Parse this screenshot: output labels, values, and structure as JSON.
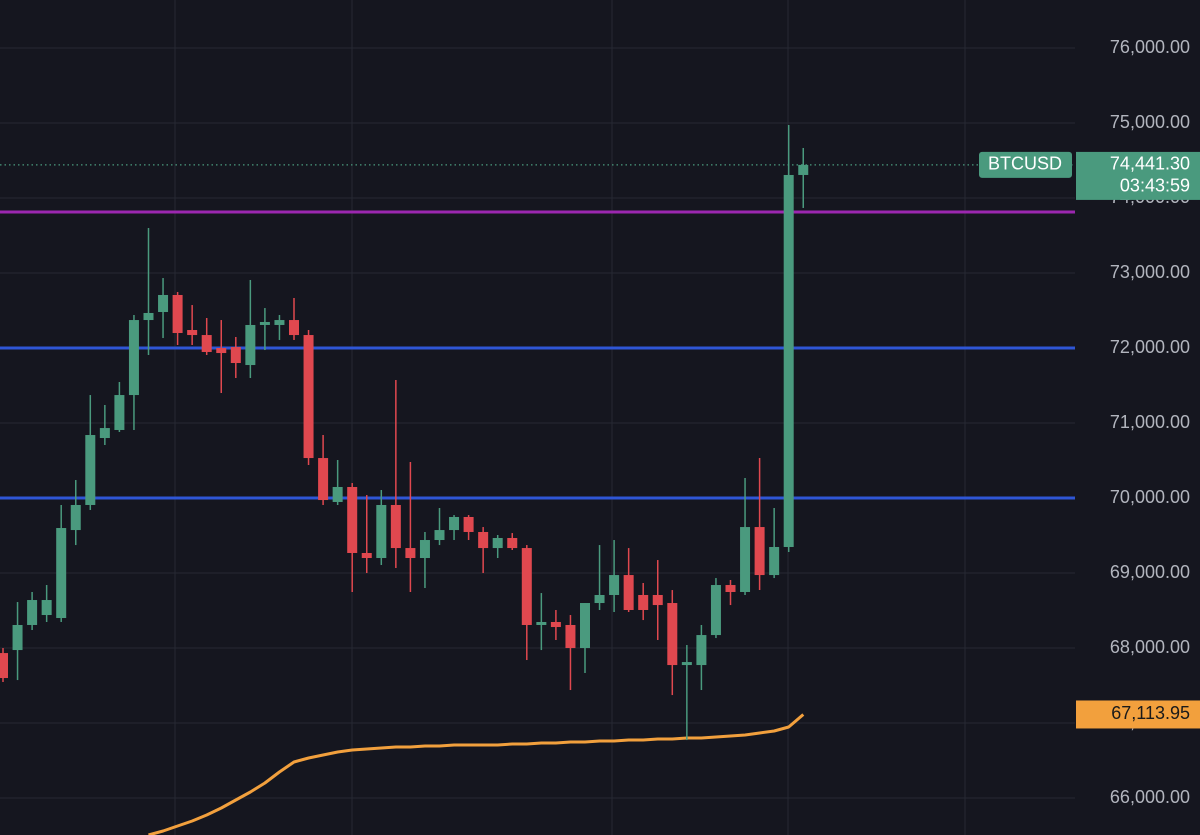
{
  "chart_data": {
    "type": "candlestick",
    "symbol": "BTCUSD",
    "countdown": "03:43:59",
    "up_color": "#4a9a7e",
    "down_color": "#e0484f",
    "ylim": [
      65507,
      76640
    ],
    "yticks": [
      {
        "value": 66000,
        "label": "66,000.00"
      },
      {
        "value": 67000,
        "label": "67,000.00"
      },
      {
        "value": 68000,
        "label": "68,000.00"
      },
      {
        "value": 69000,
        "label": "69,000.00"
      },
      {
        "value": 70000,
        "label": "70,000.00"
      },
      {
        "value": 71000,
        "label": "71,000.00"
      },
      {
        "value": 72000,
        "label": "72,000.00"
      },
      {
        "value": 73000,
        "label": "73,000.00"
      },
      {
        "value": 74000,
        "label": "74,000.00"
      },
      {
        "value": 75000,
        "label": "75,000.00"
      },
      {
        "value": 76000,
        "label": "76,000.00"
      }
    ],
    "grid": true,
    "open": [
      67933,
      67973,
      68307,
      68440,
      68400,
      69573,
      69907,
      70800,
      70907,
      71373,
      72373,
      72480,
      72707,
      72240,
      72173,
      72000,
      72013,
      71773,
      72307,
      72307,
      72373,
      72173,
      70533,
      69947,
      70147,
      69267,
      69200,
      69907,
      69333,
      69200,
      69440,
      69573,
      69747,
      69547,
      69333,
      69467,
      69333,
      68307,
      68347,
      68307,
      68000,
      68600,
      68707,
      68973,
      68707,
      68707,
      68600,
      67773,
      67773,
      68173,
      68840,
      68747,
      69613,
      68973,
      69347,
      74307
    ],
    "high": [
      68000,
      68613,
      68747,
      68840,
      69907,
      70240,
      71373,
      71240,
      71547,
      72440,
      73600,
      72933,
      72747,
      72573,
      72400,
      72373,
      72147,
      72907,
      72533,
      72440,
      72667,
      72240,
      70840,
      70507,
      70200,
      70040,
      70107,
      71573,
      70480,
      69547,
      69867,
      69773,
      69773,
      69613,
      69507,
      69533,
      69373,
      68733,
      68507,
      68440,
      68600,
      69373,
      69440,
      69333,
      68867,
      69173,
      68773,
      68040,
      68307,
      68933,
      68907,
      70267,
      70533,
      69867,
      74973,
      74667
    ],
    "low": [
      67547,
      67573,
      68240,
      68347,
      68347,
      69373,
      69840,
      70707,
      70880,
      70907,
      71907,
      72133,
      72040,
      72040,
      71907,
      71400,
      71600,
      71600,
      71973,
      72107,
      72107,
      70440,
      69907,
      69907,
      68747,
      69000,
      69107,
      69067,
      68747,
      68800,
      69373,
      69440,
      69440,
      69000,
      69200,
      69307,
      67840,
      67973,
      68107,
      67440,
      67667,
      68507,
      68480,
      68480,
      68373,
      68107,
      67373,
      66773,
      67440,
      68133,
      68573,
      68707,
      68773,
      68933,
      69280,
      73867
    ],
    "close": [
      67600,
      68307,
      68640,
      68640,
      69600,
      69907,
      70840,
      70933,
      71373,
      72373,
      72467,
      72707,
      72200,
      72173,
      71947,
      71933,
      71800,
      72307,
      72347,
      72373,
      72173,
      70533,
      69973,
      70147,
      69267,
      69200,
      69907,
      69333,
      69200,
      69440,
      69573,
      69747,
      69547,
      69333,
      69467,
      69333,
      68307,
      68347,
      68280,
      68000,
      68600,
      68707,
      68973,
      68507,
      68507,
      68573,
      67773,
      67813,
      68173,
      68840,
      68747,
      69613,
      68973,
      69347,
      74307,
      74441.3
    ],
    "close_label": "74,441.30",
    "levels": [
      {
        "value": 73813,
        "color": "#9b27af"
      },
      {
        "value": 72000,
        "color": "#2f56d6"
      },
      {
        "value": 70000,
        "color": "#2f56d6"
      }
    ],
    "ma": {
      "color": "#f2a03d",
      "values": [
        null,
        null,
        null,
        null,
        null,
        null,
        null,
        null,
        null,
        null,
        65507,
        65560,
        65627,
        65693,
        65773,
        65867,
        65973,
        66080,
        66200,
        66347,
        66480,
        66533,
        66573,
        66613,
        66640,
        66653,
        66667,
        66680,
        66680,
        66693,
        66693,
        66707,
        66707,
        66707,
        66707,
        66720,
        66720,
        66733,
        66733,
        66747,
        66747,
        66760,
        66760,
        66773,
        66773,
        66787,
        66787,
        66800,
        66800,
        66813,
        66827,
        66840,
        66867,
        66893,
        66947,
        67113.95
      ],
      "last_label": "67,113.95"
    }
  }
}
